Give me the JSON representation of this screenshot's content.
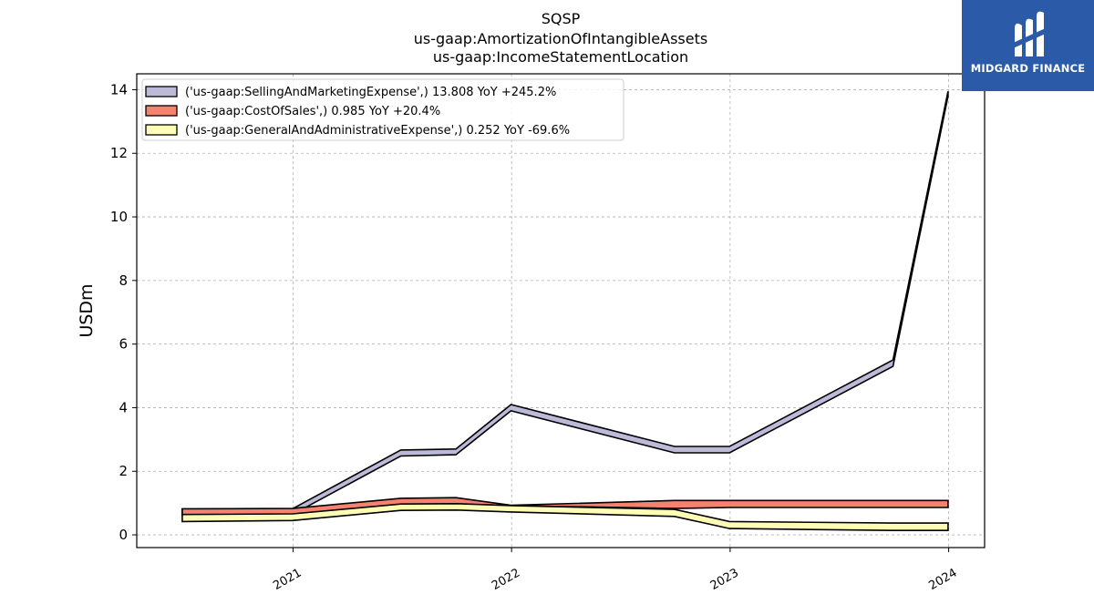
{
  "title": [
    "SQSP",
    "us-gaap:AmortizationOfIntangibleAssets",
    "us-gaap:IncomeStatementLocation"
  ],
  "logo": {
    "text": "MIDGARD FINANCE",
    "color": "#2a5aa8"
  },
  "chart_data": {
    "type": "area",
    "style": "band",
    "ylabel": "USDm",
    "xlabel": "",
    "ylim": [
      -0.4,
      14.5
    ],
    "yticks": [
      "0",
      "2",
      "4",
      "6",
      "8",
      "10",
      "12",
      "14"
    ],
    "xlim": [
      "2020-04-15",
      "2024-03-01"
    ],
    "xticks": [
      {
        "date": "2021-01-01",
        "label": "2021"
      },
      {
        "date": "2022-01-01",
        "label": "2022"
      },
      {
        "date": "2023-01-01",
        "label": "2023"
      },
      {
        "date": "2024-01-01",
        "label": "2024"
      }
    ],
    "grid": true,
    "legend_position": "top-left",
    "series": [
      {
        "name": "('us-gaap:SellingAndMarketingExpense',) 13.808 YoY +245.2%",
        "color": "#bcb9d9",
        "x": [
          "2020-06-30",
          "2020-12-31",
          "2021-06-30",
          "2021-09-30",
          "2021-12-31",
          "2022-09-30",
          "2022-12-31",
          "2023-09-30",
          "2023-12-31"
        ],
        "upper": [
          0.8,
          0.82,
          2.67,
          2.7,
          4.1,
          2.78,
          2.78,
          5.5,
          13.95
        ],
        "lower": [
          0.62,
          0.64,
          2.48,
          2.52,
          3.9,
          2.58,
          2.58,
          5.3,
          13.8
        ]
      },
      {
        "name": "('us-gaap:CostOfSales',) 0.985 YoY +20.4%",
        "color": "#f4826f",
        "x": [
          "2020-06-30",
          "2020-12-31",
          "2021-06-30",
          "2021-09-30",
          "2021-12-31",
          "2022-09-30",
          "2022-12-31",
          "2023-09-30",
          "2023-12-31"
        ],
        "upper": [
          0.82,
          0.83,
          1.15,
          1.17,
          0.93,
          1.08,
          1.08,
          1.08,
          1.08
        ],
        "lower": [
          0.63,
          0.64,
          0.96,
          0.97,
          0.92,
          0.83,
          0.86,
          0.86,
          0.86
        ]
      },
      {
        "name": "('us-gaap:GeneralAndAdministrativeExpense',) 0.252 YoY -69.6%",
        "color": "#fdfdb6",
        "x": [
          "2020-06-30",
          "2020-12-31",
          "2021-06-30",
          "2021-09-30",
          "2021-12-31",
          "2022-09-30",
          "2022-12-31",
          "2023-09-30",
          "2023-12-31"
        ],
        "upper": [
          0.64,
          0.66,
          0.97,
          0.98,
          0.92,
          0.8,
          0.42,
          0.37,
          0.37
        ],
        "lower": [
          0.42,
          0.45,
          0.77,
          0.78,
          0.72,
          0.58,
          0.2,
          0.14,
          0.14
        ]
      }
    ]
  }
}
